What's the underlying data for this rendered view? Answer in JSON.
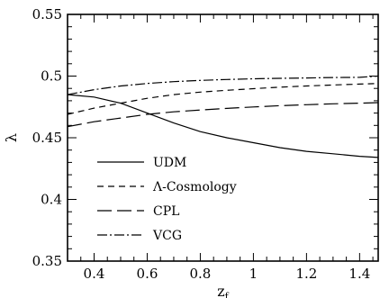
{
  "chart_data": {
    "type": "line",
    "title": "",
    "xlabel": "z",
    "xlabel_subscript": "f",
    "ylabel": "λ",
    "xlim": [
      0.3,
      1.47
    ],
    "ylim": [
      0.35,
      0.55
    ],
    "x_ticks": [
      0.4,
      0.6,
      0.8,
      1.0,
      1.2,
      1.4
    ],
    "x_tick_labels": [
      "0.4",
      "0.6",
      "0.8",
      "1",
      "1.2",
      "1.4"
    ],
    "y_ticks": [
      0.35,
      0.4,
      0.45,
      0.5,
      0.55
    ],
    "y_tick_labels": [
      "0.35",
      "0.4",
      "0.45",
      "0.5",
      "0.55"
    ],
    "grid": false,
    "legend_position": "bottom-left",
    "series": [
      {
        "name": "UDM",
        "style": "solid",
        "x": [
          0.3,
          0.4,
          0.5,
          0.6,
          0.7,
          0.8,
          0.9,
          1.0,
          1.1,
          1.2,
          1.3,
          1.4,
          1.47
        ],
        "y": [
          0.485,
          0.483,
          0.478,
          0.47,
          0.462,
          0.455,
          0.45,
          0.446,
          0.442,
          0.439,
          0.437,
          0.435,
          0.434
        ]
      },
      {
        "name": "Λ-Cosmology",
        "style": "short-dash",
        "x": [
          0.3,
          0.4,
          0.5,
          0.6,
          0.7,
          0.8,
          0.9,
          1.0,
          1.1,
          1.2,
          1.3,
          1.4,
          1.47
        ],
        "y": [
          0.469,
          0.474,
          0.478,
          0.482,
          0.485,
          0.487,
          0.4885,
          0.4898,
          0.491,
          0.492,
          0.4928,
          0.4935,
          0.494
        ]
      },
      {
        "name": "CPL",
        "style": "long-dash",
        "x": [
          0.3,
          0.4,
          0.5,
          0.6,
          0.7,
          0.8,
          0.9,
          1.0,
          1.1,
          1.2,
          1.3,
          1.4,
          1.47
        ],
        "y": [
          0.459,
          0.463,
          0.466,
          0.469,
          0.471,
          0.4725,
          0.4738,
          0.475,
          0.476,
          0.4768,
          0.4775,
          0.478,
          0.4785
        ]
      },
      {
        "name": "VCG",
        "style": "dash-dot",
        "x": [
          0.3,
          0.4,
          0.5,
          0.6,
          0.7,
          0.8,
          0.9,
          1.0,
          1.1,
          1.2,
          1.3,
          1.4,
          1.47
        ],
        "y": [
          0.485,
          0.489,
          0.492,
          0.494,
          0.4955,
          0.4965,
          0.4972,
          0.4978,
          0.4982,
          0.4985,
          0.4988,
          0.499,
          0.5
        ]
      }
    ]
  }
}
